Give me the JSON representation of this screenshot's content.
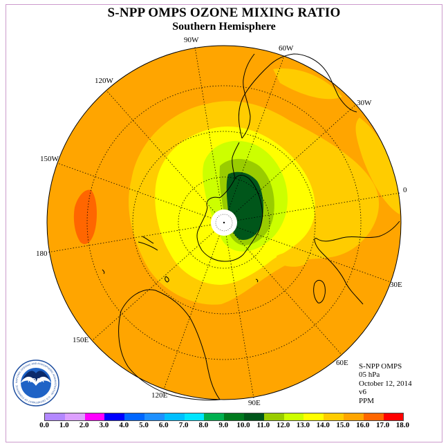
{
  "header": {
    "title": "S-NPP OMPS OZONE MIXING RATIO",
    "subtitle": "Southern Hemisphere"
  },
  "map": {
    "longitude_labels": [
      "90W",
      "60W",
      "30W",
      "0",
      "30E",
      "60E",
      "90E",
      "120E",
      "150E",
      "180",
      "150W",
      "120W"
    ],
    "land_outline_color": "#000000",
    "pole_mask_color": "#ffffff"
  },
  "info": {
    "instrument": "S-NPP OMPS",
    "level": "05 hPa",
    "date": "October 12, 2014",
    "version": "v6",
    "units": "PPM"
  },
  "legend": {
    "ticks": [
      "0.0",
      "1.0",
      "2.0",
      "3.0",
      "4.0",
      "5.0",
      "6.0",
      "7.0",
      "8.0",
      "9.0",
      "10.0",
      "11.0",
      "12.0",
      "13.0",
      "14.0",
      "15.0",
      "16.0",
      "17.0",
      "18.0"
    ],
    "colors": [
      "#b388ff",
      "#dda0ff",
      "#ff00ff",
      "#0000ff",
      "#0066ff",
      "#1e90ff",
      "#00bfff",
      "#00e5ff",
      "#00b050",
      "#007a1e",
      "#00561a",
      "#99cc00",
      "#ccff00",
      "#ffff00",
      "#ffcc00",
      "#ffa500",
      "#ff6600",
      "#ff0000",
      "#8b4513"
    ]
  },
  "logo": {
    "text": "NOAA",
    "ring_text": "NATIONAL OCEANIC AND ATMOSPHERIC ADMINISTRATION · U.S. DEPARTMENT OF COMMERCE"
  }
}
